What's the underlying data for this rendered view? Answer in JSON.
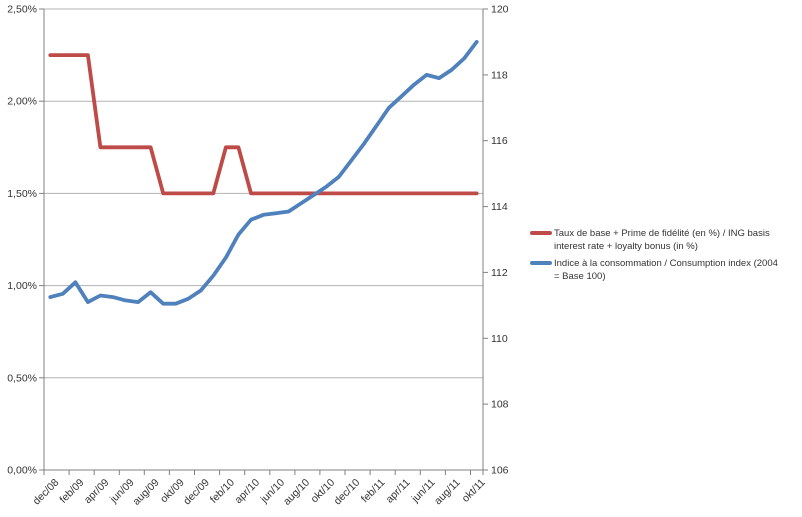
{
  "chart_data": {
    "type": "line",
    "x_categories": [
      "dec/08",
      "jan/09",
      "feb/09",
      "mrt/09",
      "apr/09",
      "mei/09",
      "jun/09",
      "jul/09",
      "aug/09",
      "sep/09",
      "okt/09",
      "nov/09",
      "dec/09",
      "jan/10",
      "feb/10",
      "mrt/10",
      "apr/10",
      "mei/10",
      "jun/10",
      "jul/10",
      "aug/10",
      "sep/10",
      "okt/10",
      "nov/10",
      "dec/10",
      "jan/11",
      "feb/11",
      "mrt/11",
      "apr/11",
      "mei/11",
      "jun/11",
      "jul/11",
      "aug/11",
      "sep/11",
      "okt/11"
    ],
    "x_tick_labels": [
      "dec/08",
      "feb/09",
      "apr/09",
      "jun/09",
      "aug/09",
      "okt/09",
      "dec/09",
      "feb/10",
      "apr/10",
      "jun/10",
      "aug/10",
      "okt/10",
      "dec/10",
      "feb/11",
      "apr/11",
      "jun/11",
      "aug/11",
      "okt/11"
    ],
    "left_axis": {
      "min": 0,
      "max": 2.5,
      "tick_values": [
        0,
        0.5,
        1.0,
        1.5,
        2.0,
        2.5
      ],
      "tick_labels": [
        "0,00%",
        "0,50%",
        "1,00%",
        "1,50%",
        "2,00%",
        "2,50%"
      ]
    },
    "right_axis": {
      "min": 106,
      "max": 120,
      "tick_values": [
        106,
        108,
        110,
        112,
        114,
        116,
        118,
        120
      ],
      "tick_labels": [
        "106",
        "108",
        "110",
        "112",
        "114",
        "116",
        "118",
        "120"
      ]
    },
    "grid": true,
    "grid_color": "#b3b3b3",
    "axis_color": "#808080",
    "text_color": "#333333",
    "series": [
      {
        "name": "Taux de base + Prime de fidélité (en %) / ING basis interest rate + loyalty bonus (in %)",
        "axis": "left",
        "color": "#be4b48",
        "values": [
          2.25,
          2.25,
          2.25,
          2.25,
          1.75,
          1.75,
          1.75,
          1.75,
          1.75,
          1.5,
          1.5,
          1.5,
          1.5,
          1.5,
          1.75,
          1.75,
          1.5,
          1.5,
          1.5,
          1.5,
          1.5,
          1.5,
          1.5,
          1.5,
          1.5,
          1.5,
          1.5,
          1.5,
          1.5,
          1.5,
          1.5,
          1.5,
          1.5,
          1.5,
          1.5
        ]
      },
      {
        "name": "Indice à la consommation / Consumption index (2004 = Base 100)",
        "axis": "right",
        "color": "#4f81bd",
        "values": [
          111.25,
          111.35,
          111.7,
          111.1,
          111.3,
          111.25,
          111.15,
          111.1,
          111.4,
          111.05,
          111.05,
          111.2,
          111.45,
          111.9,
          112.45,
          113.15,
          113.6,
          113.75,
          113.8,
          113.85,
          114.1,
          114.35,
          114.6,
          114.9,
          115.4,
          115.9,
          116.45,
          117.0,
          117.35,
          117.7,
          118.0,
          117.9,
          118.15,
          118.5,
          119.0
        ]
      }
    ],
    "legend": {
      "position": "right",
      "entries": [
        {
          "color": "#be4b48",
          "lines": [
            "Taux de base + Prime de fidélité (en %) / ING basis",
            "interest rate + loyalty bonus (in %)"
          ]
        },
        {
          "color": "#4f81bd",
          "lines": [
            "Indice à la consommation / Consumption index (2004",
            "= Base 100)"
          ]
        }
      ]
    }
  }
}
